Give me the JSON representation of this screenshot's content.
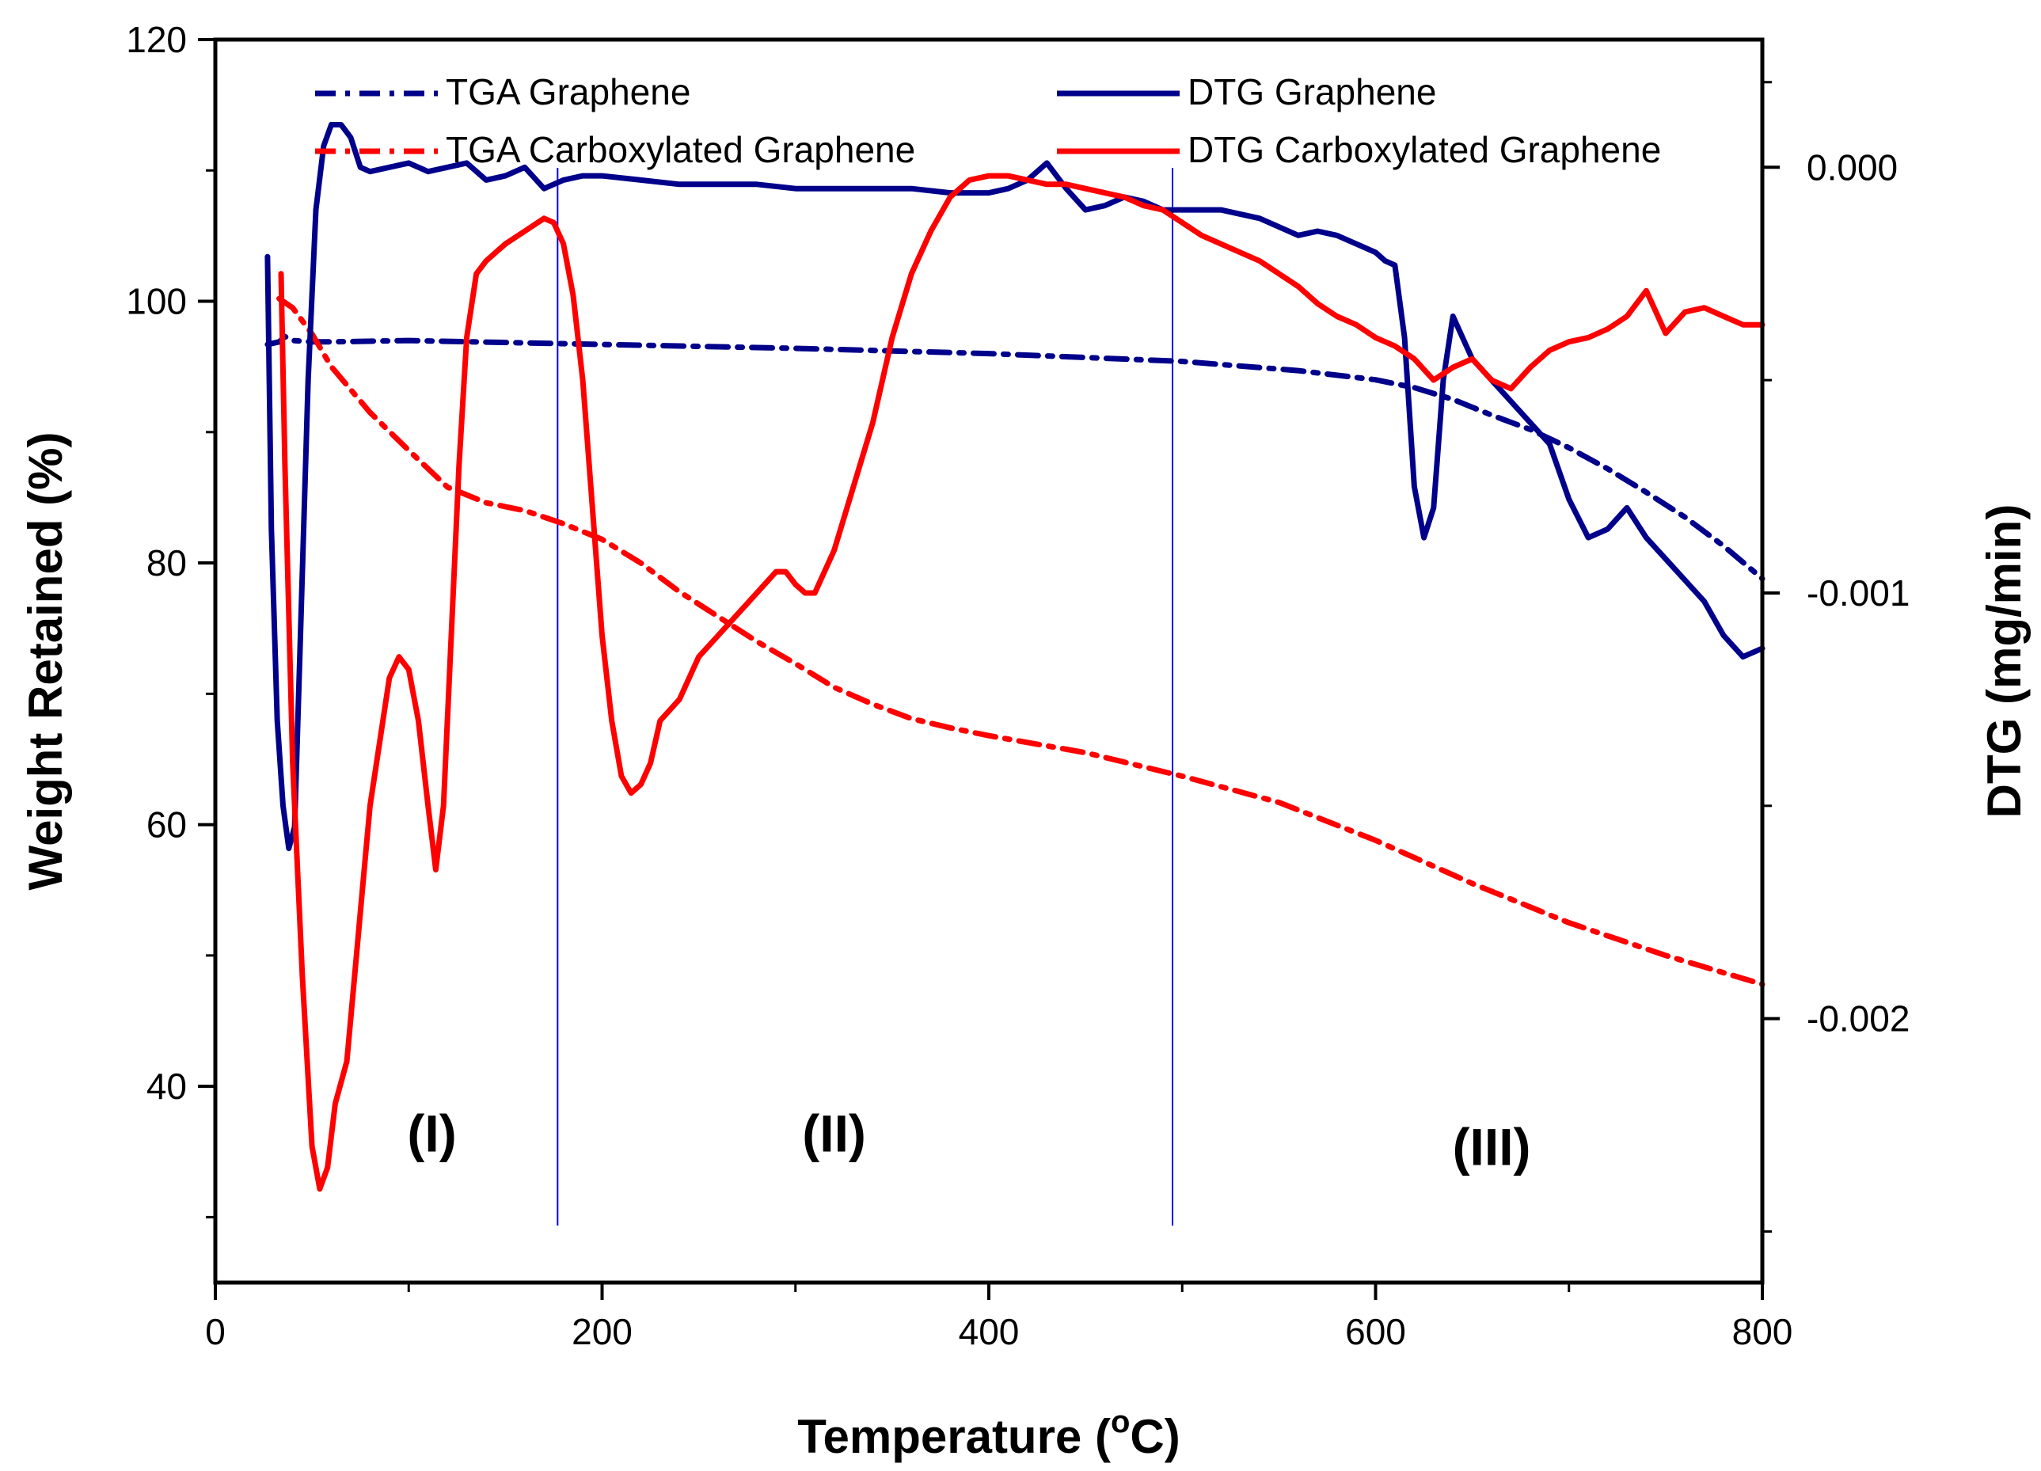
{
  "chart_data": {
    "type": "line",
    "xlabel_main": "Temperature (",
    "xlabel_sup": "o",
    "xlabel_tail": "C)",
    "ylabel": "Weight Retained (%)",
    "y2label": "DTG (mg/min)",
    "xlim": [
      0,
      800
    ],
    "ylim": [
      25,
      120
    ],
    "y2lim": [
      -0.00262,
      0.0003
    ],
    "x_ticks": [
      "0",
      "200",
      "400",
      "600",
      "800"
    ],
    "y_ticks": [
      "40",
      "60",
      "80",
      "100",
      "120"
    ],
    "y2_ticks": [
      "0.000",
      "-0.001",
      "-0.002"
    ],
    "region_labels": [
      "(I)",
      "(II)",
      "(III)"
    ],
    "region_label_positions": [
      [
        112,
        35
      ],
      [
        320,
        35
      ],
      [
        660,
        34
      ]
    ],
    "region_boundaries": [
      177,
      495
    ],
    "grid": false,
    "legend_position": "top",
    "colors": {
      "graphene": "#00008B",
      "carboxylated": "#FF0000",
      "boundary": "#0000FF"
    },
    "series": [
      {
        "name": "TGA  Graphene",
        "axis": "left",
        "style": "dashdot",
        "color": "#00008B",
        "x": [
          27,
          33,
          36,
          40,
          50,
          60,
          100,
          200,
          300,
          400,
          500,
          560,
          600,
          620,
          640,
          660,
          680,
          700,
          720,
          740,
          760,
          780,
          800
        ],
        "y": [
          96.7,
          96.9,
          97.3,
          97.0,
          96.9,
          96.9,
          97.0,
          96.7,
          96.4,
          96.0,
          95.4,
          94.7,
          94.0,
          93.4,
          92.5,
          91.3,
          90.2,
          88.8,
          87.2,
          85.4,
          83.5,
          81.3,
          78.8
        ]
      },
      {
        "name": "TGA Carboxylated Graphene",
        "axis": "left",
        "style": "dashdot",
        "color": "#FF0000",
        "x": [
          33,
          40,
          50,
          60,
          80,
          100,
          120,
          140,
          160,
          180,
          200,
          220,
          240,
          260,
          280,
          300,
          320,
          340,
          360,
          380,
          400,
          450,
          500,
          550,
          600,
          650,
          700,
          750,
          800
        ],
        "y": [
          100.2,
          99.5,
          97.5,
          95.0,
          91.5,
          88.6,
          85.8,
          84.6,
          84.0,
          83.0,
          81.8,
          80.0,
          77.8,
          75.9,
          74.0,
          72.3,
          70.5,
          69.2,
          68.1,
          67.4,
          66.8,
          65.5,
          63.7,
          61.7,
          58.8,
          55.5,
          52.5,
          50.0,
          47.8
        ]
      },
      {
        "name": "DTG Graphene",
        "axis": "right",
        "style": "solid",
        "color": "#00008B",
        "x": [
          27,
          29,
          32,
          35,
          38,
          41,
          44,
          48,
          52,
          56,
          60,
          65,
          70,
          75,
          80,
          90,
          100,
          110,
          120,
          130,
          140,
          150,
          160,
          170,
          180,
          190,
          200,
          220,
          240,
          260,
          280,
          300,
          320,
          340,
          360,
          380,
          400,
          410,
          420,
          430,
          440,
          450,
          460,
          470,
          480,
          490,
          500,
          510,
          520,
          530,
          540,
          550,
          560,
          570,
          580,
          590,
          600,
          605,
          610,
          615,
          620,
          625,
          630,
          635,
          640,
          645,
          650,
          660,
          670,
          680,
          690,
          700,
          710,
          720,
          730,
          740,
          750,
          760,
          770,
          780,
          790,
          800
        ],
        "y": [
          -0.00021,
          -0.00085,
          -0.0013,
          -0.0015,
          -0.0016,
          -0.00155,
          -0.0011,
          -0.0005,
          -0.0001,
          5e-05,
          0.0001,
          0.0001,
          7e-05,
          0.0,
          -1e-05,
          0.0,
          1e-05,
          -1e-05,
          0.0,
          1e-05,
          -3e-05,
          -2e-05,
          0.0,
          -5e-05,
          -3e-05,
          -2e-05,
          -2e-05,
          -3e-05,
          -4e-05,
          -4e-05,
          -4e-05,
          -5e-05,
          -5e-05,
          -5e-05,
          -5e-05,
          -6e-05,
          -6e-05,
          -5e-05,
          -3e-05,
          1e-05,
          -5e-05,
          -0.0001,
          -9e-05,
          -7e-05,
          -8e-05,
          -0.0001,
          -0.0001,
          -0.0001,
          -0.0001,
          -0.00011,
          -0.00012,
          -0.00014,
          -0.00016,
          -0.00015,
          -0.00016,
          -0.00018,
          -0.0002,
          -0.00022,
          -0.00023,
          -0.0004,
          -0.00075,
          -0.00087,
          -0.0008,
          -0.0005,
          -0.00035,
          -0.0004,
          -0.00045,
          -0.0005,
          -0.00055,
          -0.0006,
          -0.00065,
          -0.00078,
          -0.00087,
          -0.00085,
          -0.0008,
          -0.00087,
          -0.00092,
          -0.00097,
          -0.00102,
          -0.0011,
          -0.00115,
          -0.00113
        ]
      },
      {
        "name": "DTG Carboxylated Graphene",
        "axis": "right",
        "style": "solid",
        "color": "#FF0000",
        "x": [
          34,
          36,
          40,
          45,
          50,
          54,
          58,
          62,
          68,
          72,
          76,
          80,
          85,
          90,
          95,
          100,
          105,
          110,
          114,
          118,
          122,
          126,
          130,
          135,
          140,
          145,
          150,
          160,
          170,
          175,
          180,
          185,
          190,
          195,
          200,
          205,
          210,
          215,
          220,
          225,
          230,
          240,
          250,
          260,
          270,
          280,
          290,
          295,
          300,
          305,
          310,
          320,
          330,
          340,
          350,
          360,
          370,
          380,
          390,
          400,
          410,
          420,
          430,
          440,
          450,
          460,
          470,
          480,
          490,
          500,
          510,
          520,
          530,
          540,
          550,
          560,
          570,
          580,
          590,
          600,
          610,
          620,
          630,
          640,
          650,
          660,
          670,
          680,
          690,
          700,
          710,
          720,
          730,
          735,
          740,
          745,
          750,
          760,
          770,
          780,
          790,
          800
        ],
        "y": [
          -0.00025,
          -0.0007,
          -0.0014,
          -0.0019,
          -0.0023,
          -0.0024,
          -0.00235,
          -0.0022,
          -0.0021,
          -0.0019,
          -0.0017,
          -0.0015,
          -0.00135,
          -0.0012,
          -0.00115,
          -0.00118,
          -0.0013,
          -0.0015,
          -0.00165,
          -0.0015,
          -0.0011,
          -0.0007,
          -0.0004,
          -0.00025,
          -0.00022,
          -0.0002,
          -0.00018,
          -0.00015,
          -0.00012,
          -0.00013,
          -0.00018,
          -0.0003,
          -0.0005,
          -0.0008,
          -0.0011,
          -0.0013,
          -0.00143,
          -0.00147,
          -0.00145,
          -0.0014,
          -0.0013,
          -0.00125,
          -0.00115,
          -0.0011,
          -0.00105,
          -0.001,
          -0.00095,
          -0.00095,
          -0.00098,
          -0.001,
          -0.001,
          -0.0009,
          -0.00075,
          -0.0006,
          -0.0004,
          -0.00025,
          -0.00015,
          -7e-05,
          -3e-05,
          -2e-05,
          -2e-05,
          -3e-05,
          -4e-05,
          -4e-05,
          -5e-05,
          -6e-05,
          -7e-05,
          -9e-05,
          -0.0001,
          -0.00013,
          -0.00016,
          -0.00018,
          -0.0002,
          -0.00022,
          -0.00025,
          -0.00028,
          -0.00032,
          -0.00035,
          -0.00037,
          -0.0004,
          -0.00042,
          -0.00045,
          -0.0005,
          -0.00047,
          -0.00045,
          -0.0005,
          -0.00052,
          -0.00047,
          -0.00043,
          -0.00041,
          -0.0004,
          -0.00038,
          -0.00035,
          -0.00032,
          -0.00029,
          -0.00034,
          -0.00039,
          -0.00034,
          -0.00033,
          -0.00035,
          -0.00037,
          -0.00037
        ]
      }
    ]
  }
}
